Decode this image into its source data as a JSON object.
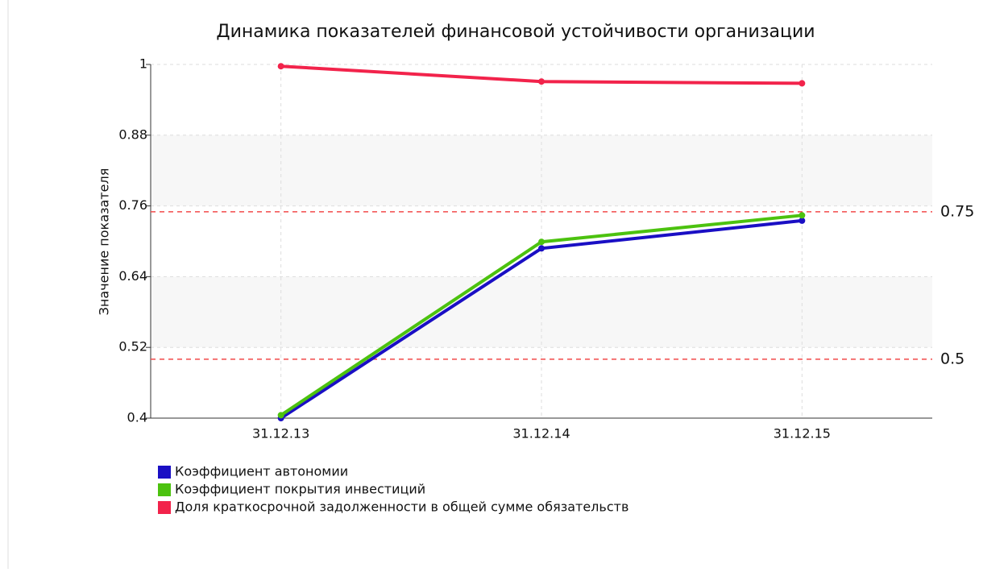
{
  "chart_data": {
    "type": "line",
    "title": "Динамика показателей финансовой устойчивости организации",
    "y_axis_label": "Значение показателя",
    "categories": [
      "31.12.13",
      "31.12.14",
      "31.12.15"
    ],
    "series": [
      {
        "name": "Коэффициент автономии",
        "color": "#1a0fc4",
        "values": [
          0.4,
          0.688,
          0.735
        ]
      },
      {
        "name": "Коэффициент покрытия инвестиций",
        "color": "#4cc20f",
        "values": [
          0.405,
          0.699,
          0.744
        ]
      },
      {
        "name": "Доля краткосрочной задолженности в общей сумме обязательств",
        "color": "#f2234b",
        "values": [
          0.997,
          0.971,
          0.968
        ]
      }
    ],
    "ylim": [
      0.4,
      1
    ],
    "yticks": [
      0.4,
      0.52,
      0.64,
      0.76,
      0.88,
      1
    ],
    "reference_lines": [
      0.75,
      0.5
    ],
    "reference_color": "#f24a4a",
    "grid": true,
    "alternate_bands": true
  }
}
